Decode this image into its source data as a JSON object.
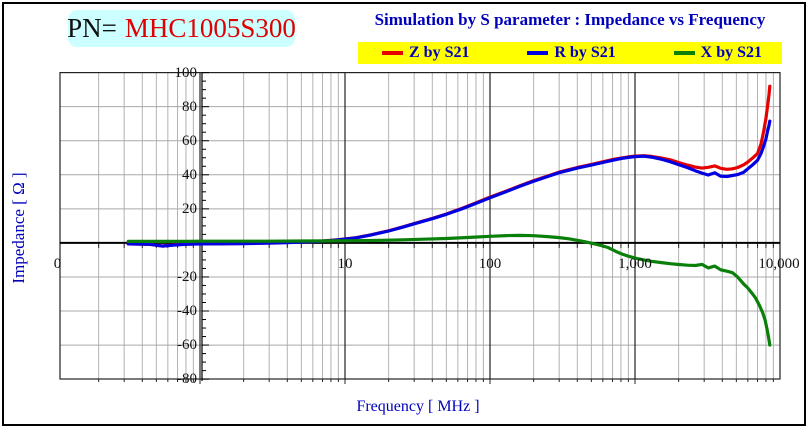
{
  "header": {
    "pn_label": "PN=",
    "pn_value": "MHC1005S300",
    "title": "Simulation by S parameter : Impedance vs Frequency"
  },
  "legend": {
    "items": [
      {
        "label": "Z by S21",
        "color": "#e60000"
      },
      {
        "label": "R by S21",
        "color": "#0000e0"
      },
      {
        "label": "X by S21",
        "color": "#0a800a"
      }
    ]
  },
  "axes": {
    "x_title": "Frequency [ MHz ]",
    "y_title": "Impedance [ Ω ]",
    "y_tick_values": [
      100,
      80,
      60,
      40,
      20,
      -20,
      -40,
      -60,
      -80
    ],
    "x_ticks": [
      {
        "label": "0",
        "f": 0.104
      },
      {
        "label": "10",
        "f": 10
      },
      {
        "label": "100",
        "f": 100
      },
      {
        "label": "1,000",
        "f": 1000
      },
      {
        "label": "10,000",
        "f": 10000
      }
    ]
  },
  "chart_data": {
    "type": "line",
    "title": "Simulation by S parameter : Impedance vs Frequency",
    "xlabel": "Frequency [ MHz ]",
    "ylabel": "Impedance [Ω]",
    "x_scale": "log",
    "xlim": [
      0.1,
      10000
    ],
    "ylim": [
      -80,
      100
    ],
    "grid": true,
    "legend_position": "top",
    "series": [
      {
        "name": "Z by S21",
        "color": "#e60000",
        "points": [
          [
            0.32,
            -0.6
          ],
          [
            0.45,
            -0.8
          ],
          [
            0.55,
            -1.8
          ],
          [
            0.65,
            -1.2
          ],
          [
            0.8,
            -0.7
          ],
          [
            1,
            -0.5
          ],
          [
            1.5,
            -0.4
          ],
          [
            2,
            -0.3
          ],
          [
            3,
            0
          ],
          [
            4,
            0.3
          ],
          [
            5,
            0.6
          ],
          [
            7,
            1.1
          ],
          [
            9,
            1.9
          ],
          [
            12,
            3.1
          ],
          [
            15,
            4.7
          ],
          [
            20,
            7.1
          ],
          [
            25,
            9.4
          ],
          [
            30,
            11.4
          ],
          [
            40,
            14.4
          ],
          [
            50,
            17
          ],
          [
            65,
            20.5
          ],
          [
            80,
            23.5
          ],
          [
            100,
            26.9
          ],
          [
            130,
            30.5
          ],
          [
            160,
            33.5
          ],
          [
            200,
            36.6
          ],
          [
            250,
            39.3
          ],
          [
            300,
            41.6
          ],
          [
            400,
            44.3
          ],
          [
            500,
            46.1
          ],
          [
            600,
            47.6
          ],
          [
            700,
            48.9
          ],
          [
            800,
            49.8
          ],
          [
            900,
            50.5
          ],
          [
            1000,
            51
          ],
          [
            1150,
            51.2
          ],
          [
            1300,
            50.8
          ],
          [
            1500,
            50
          ],
          [
            1750,
            48.8
          ],
          [
            2000,
            47.2
          ],
          [
            2300,
            45.7
          ],
          [
            2600,
            44.5
          ],
          [
            2900,
            43.9
          ],
          [
            3200,
            44.4
          ],
          [
            3550,
            45.2
          ],
          [
            3900,
            43.8
          ],
          [
            4300,
            43.2
          ],
          [
            4700,
            43.5
          ],
          [
            5100,
            44.3
          ],
          [
            5600,
            45.8
          ],
          [
            6000,
            47.5
          ],
          [
            6500,
            50
          ],
          [
            7000,
            52.5
          ],
          [
            7400,
            58
          ],
          [
            7700,
            65
          ],
          [
            8000,
            73
          ],
          [
            8200,
            80
          ],
          [
            8400,
            87
          ],
          [
            8500,
            92
          ]
        ]
      },
      {
        "name": "R by S21",
        "color": "#0000e0",
        "points": [
          [
            0.32,
            -0.6
          ],
          [
            0.45,
            -0.8
          ],
          [
            0.55,
            -1.9
          ],
          [
            0.65,
            -1.3
          ],
          [
            0.8,
            -0.8
          ],
          [
            1,
            -0.6
          ],
          [
            1.5,
            -0.5
          ],
          [
            2,
            -0.4
          ],
          [
            3,
            -0.1
          ],
          [
            4,
            0.2
          ],
          [
            5,
            0.5
          ],
          [
            7,
            1
          ],
          [
            9,
            1.8
          ],
          [
            12,
            3
          ],
          [
            15,
            4.6
          ],
          [
            20,
            7
          ],
          [
            25,
            9.2
          ],
          [
            30,
            11.2
          ],
          [
            40,
            14.2
          ],
          [
            50,
            16.8
          ],
          [
            65,
            20.2
          ],
          [
            80,
            23.2
          ],
          [
            100,
            26.5
          ],
          [
            130,
            30.2
          ],
          [
            160,
            33.2
          ],
          [
            200,
            36.2
          ],
          [
            250,
            39
          ],
          [
            300,
            41.2
          ],
          [
            400,
            43.9
          ],
          [
            500,
            45.7
          ],
          [
            600,
            47.2
          ],
          [
            700,
            48.5
          ],
          [
            800,
            49.5
          ],
          [
            900,
            50.2
          ],
          [
            1000,
            50.7
          ],
          [
            1150,
            50.9
          ],
          [
            1300,
            50.4
          ],
          [
            1500,
            49.3
          ],
          [
            1750,
            47.7
          ],
          [
            2000,
            46
          ],
          [
            2300,
            44.2
          ],
          [
            2600,
            42.4
          ],
          [
            2900,
            41
          ],
          [
            3200,
            39.9
          ],
          [
            3550,
            41.2
          ],
          [
            3900,
            39.2
          ],
          [
            4300,
            39
          ],
          [
            4700,
            39.6
          ],
          [
            5100,
            40.1
          ],
          [
            5600,
            41.4
          ],
          [
            6000,
            43.5
          ],
          [
            6500,
            46
          ],
          [
            7000,
            48.5
          ],
          [
            7400,
            52.5
          ],
          [
            7700,
            56.5
          ],
          [
            8000,
            61
          ],
          [
            8200,
            65.5
          ],
          [
            8400,
            69
          ],
          [
            8500,
            71.5
          ]
        ]
      },
      {
        "name": "X by S21",
        "color": "#0a800a",
        "points": [
          [
            0.32,
            0.9
          ],
          [
            0.5,
            0.9
          ],
          [
            0.8,
            0.9
          ],
          [
            1,
            1
          ],
          [
            2,
            1
          ],
          [
            3,
            1
          ],
          [
            5,
            1.1
          ],
          [
            8,
            1.2
          ],
          [
            12,
            1.3
          ],
          [
            18,
            1.5
          ],
          [
            25,
            1.8
          ],
          [
            35,
            2.2
          ],
          [
            50,
            2.6
          ],
          [
            70,
            3.2
          ],
          [
            100,
            3.9
          ],
          [
            130,
            4.3
          ],
          [
            160,
            4.4
          ],
          [
            200,
            4.2
          ],
          [
            250,
            3.7
          ],
          [
            300,
            3.1
          ],
          [
            350,
            2.4
          ],
          [
            400,
            1.5
          ],
          [
            450,
            0.7
          ],
          [
            500,
            -0.2
          ],
          [
            550,
            -1
          ],
          [
            600,
            -1.8
          ],
          [
            650,
            -2.7
          ],
          [
            700,
            -4
          ],
          [
            750,
            -5.3
          ],
          [
            800,
            -6.3
          ],
          [
            900,
            -7.8
          ],
          [
            1000,
            -8.9
          ],
          [
            1150,
            -10
          ],
          [
            1300,
            -10.8
          ],
          [
            1500,
            -11.5
          ],
          [
            1750,
            -12.2
          ],
          [
            2000,
            -12.7
          ],
          [
            2300,
            -13.1
          ],
          [
            2600,
            -13.3
          ],
          [
            2900,
            -12.6
          ],
          [
            3200,
            -14.7
          ],
          [
            3550,
            -13.6
          ],
          [
            3900,
            -15.8
          ],
          [
            4300,
            -16.6
          ],
          [
            4700,
            -17.5
          ],
          [
            5100,
            -20
          ],
          [
            5600,
            -24
          ],
          [
            6000,
            -26.5
          ],
          [
            6400,
            -29.5
          ],
          [
            6800,
            -32.5
          ],
          [
            7200,
            -36.5
          ],
          [
            7600,
            -41
          ],
          [
            7900,
            -45.5
          ],
          [
            8200,
            -52
          ],
          [
            8400,
            -57
          ],
          [
            8500,
            -60
          ]
        ]
      }
    ]
  }
}
